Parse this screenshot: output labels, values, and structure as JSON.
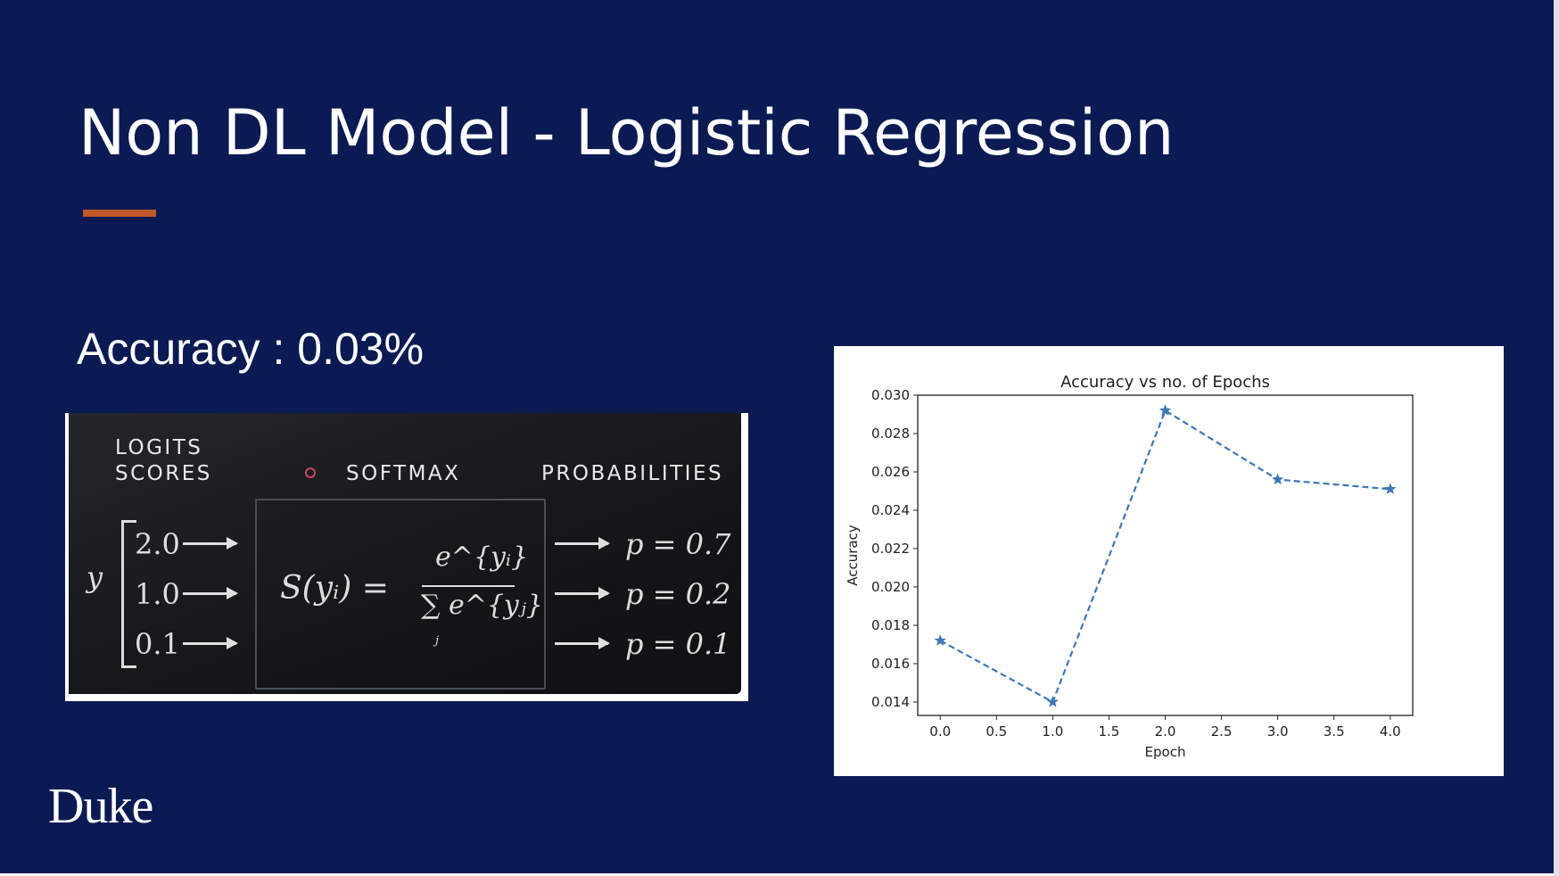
{
  "slide": {
    "title": "Non DL Model - Logistic Regression",
    "accuracy_text": "Accuracy : 0.03%",
    "logo_text": "Duke",
    "colors": {
      "background": "#0b1a53",
      "accent": "#c0582a",
      "text": "#ffffff"
    }
  },
  "softmax_figure": {
    "logits_label_line1": "LOGITS",
    "logits_label_line2": "SCORES",
    "softmax_label": "SOFTMAX",
    "probabilities_label": "PROBABILITIES",
    "y_label": "y",
    "logits": [
      "2.0",
      "1.0",
      "0.1"
    ],
    "formula_lhs": "S(yᵢ) =",
    "formula_numerator": "e^{yᵢ}",
    "formula_denominator": "∑ e^{yⱼ}",
    "formula_sum_index": "j",
    "probabilities": [
      "p = 0.7",
      "p = 0.2",
      "p = 0.1"
    ]
  },
  "chart_data": {
    "type": "line",
    "title": "Accuracy vs no. of Epochs",
    "xlabel": "Epoch",
    "ylabel": "Accuracy",
    "x": [
      0,
      1,
      2,
      3,
      4
    ],
    "series": [
      {
        "values": [
          0.0172,
          0.014,
          0.0292,
          0.0256,
          0.0251
        ],
        "color": "#3d77b6",
        "line_style": "dashed",
        "marker": "star"
      }
    ],
    "xlim": [
      -0.2,
      4.2
    ],
    "ylim": [
      0.0133,
      0.03
    ],
    "xticks": [
      "0.0",
      "0.5",
      "1.0",
      "1.5",
      "2.0",
      "2.5",
      "3.0",
      "3.5",
      "4.0"
    ],
    "yticks": [
      "0.014",
      "0.016",
      "0.018",
      "0.020",
      "0.022",
      "0.024",
      "0.026",
      "0.028",
      "0.030"
    ],
    "grid": false,
    "legend": "none"
  }
}
